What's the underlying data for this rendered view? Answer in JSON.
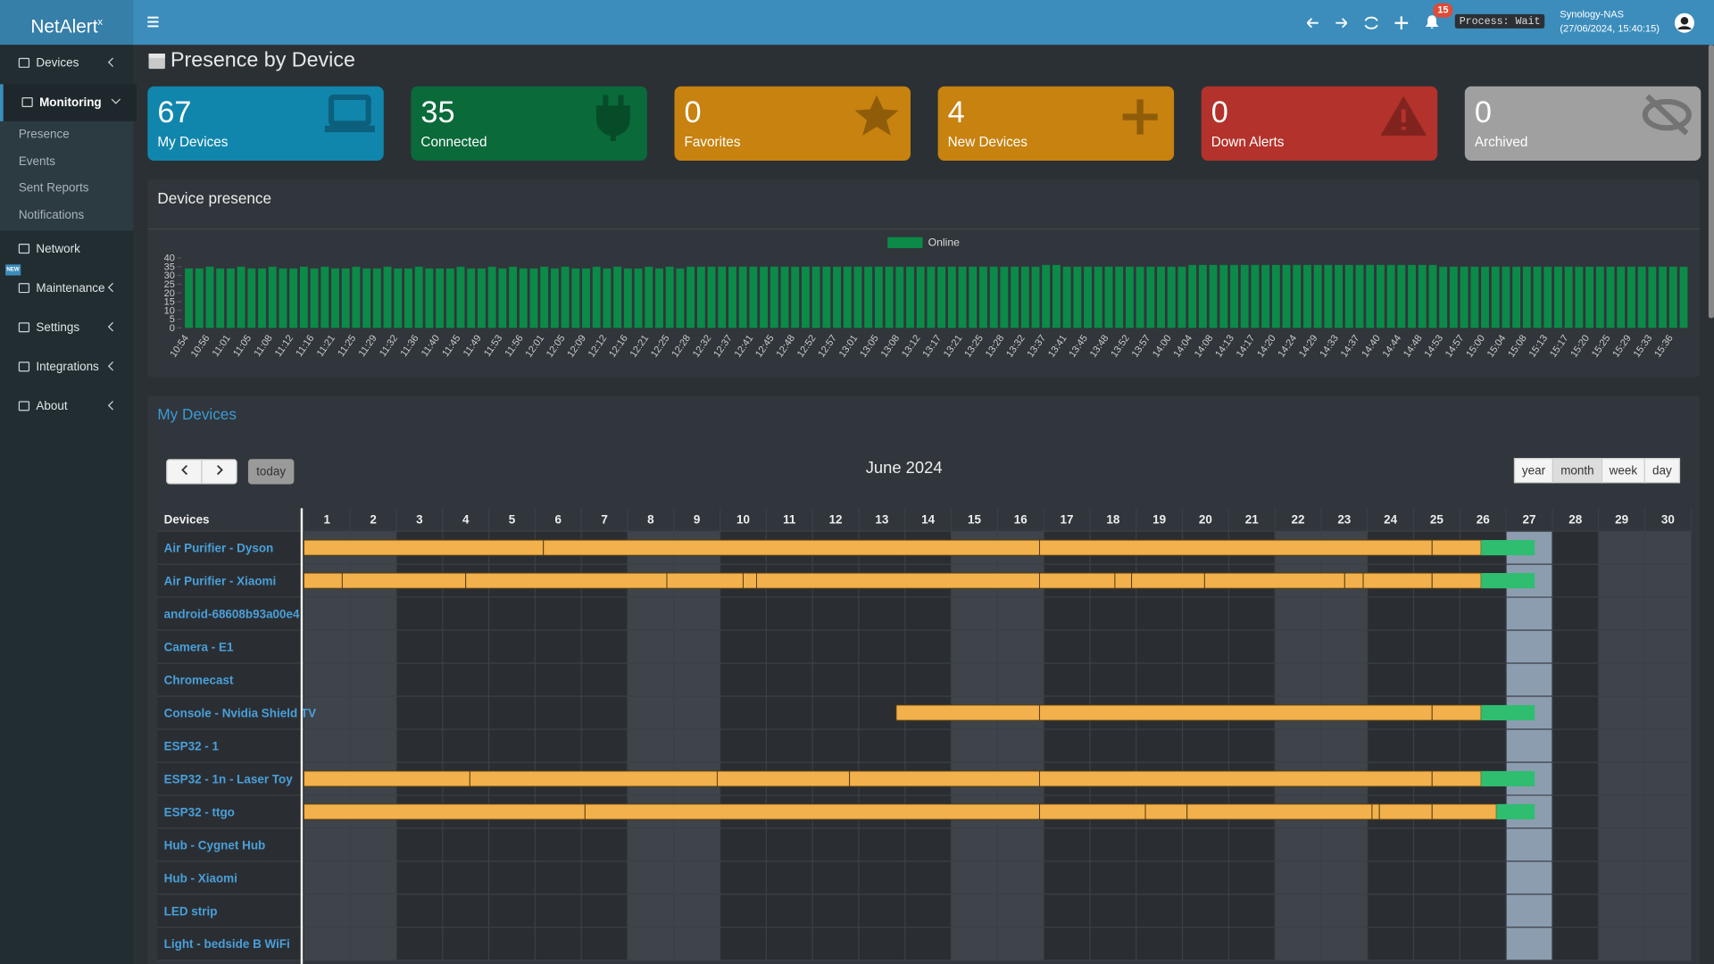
{
  "header": {
    "logo": "NetAlert",
    "logo_sup": "x",
    "notifications": "15",
    "process": "Process: Wait",
    "host": "Synology-NAS",
    "timestamp": "(27/06/2024, 15:40:15)"
  },
  "sidebar": {
    "items": [
      {
        "label": "Devices"
      },
      {
        "label": "Monitoring",
        "children": [
          "Presence",
          "Events",
          "Sent Reports",
          "Notifications"
        ]
      },
      {
        "label": "Network"
      },
      {
        "label": "Maintenance",
        "badge": "NEW"
      },
      {
        "label": "Settings"
      },
      {
        "label": "Integrations"
      },
      {
        "label": "About"
      }
    ]
  },
  "page_title": "Presence by Device",
  "tiles": [
    {
      "value": "67",
      "label": "My Devices",
      "color": "#1186ad"
    },
    {
      "value": "35",
      "label": "Connected",
      "color": "#0a6a3a"
    },
    {
      "value": "0",
      "label": "Favorites",
      "color": "#c7820f"
    },
    {
      "value": "4",
      "label": "New Devices",
      "color": "#c7820f"
    },
    {
      "value": "0",
      "label": "Down Alerts",
      "color": "#b3322b"
    },
    {
      "value": "0",
      "label": "Archived",
      "color": "#a0a0a0"
    }
  ],
  "presence_chart": {
    "type": "bar",
    "title": "Device presence",
    "categories": [
      "10:54",
      null,
      "10:56",
      null,
      "11:01",
      null,
      "11:05",
      null,
      "11:08",
      null,
      "11:12",
      null,
      "11:16",
      null,
      "11:21",
      null,
      "11:25",
      null,
      "11:29",
      null,
      "11:32",
      null,
      "11:36",
      null,
      "11:40",
      null,
      "11:45",
      null,
      "11:49",
      null,
      "11:53",
      null,
      "11:56",
      null,
      "12:01",
      null,
      "12:05",
      null,
      "12:09",
      null,
      "12:12",
      null,
      "12:16",
      null,
      "12:21",
      null,
      "12:25",
      null,
      "12:28",
      null,
      "12:32",
      null,
      "12:37",
      null,
      "12:41",
      null,
      "12:45",
      null,
      "12:48",
      null,
      "12:52",
      null,
      "12:57",
      null,
      "13:01",
      null,
      "13:05",
      null,
      "13:08",
      null,
      "13:12",
      null,
      "13:17",
      null,
      "13:21",
      null,
      "13:25",
      null,
      "13:28",
      null,
      "13:32",
      null,
      "13:37",
      null,
      "13:41",
      null,
      "13:45",
      null,
      "13:48",
      null,
      "13:52",
      null,
      "13:57",
      null,
      "14:00",
      null,
      "14:04",
      null,
      "14:08",
      null,
      "14:13",
      null,
      "14:17",
      null,
      "14:20",
      null,
      "14:24",
      null,
      "14:29",
      null,
      "14:33",
      null,
      "14:37",
      null,
      "14:40",
      null,
      "14:44",
      null,
      "14:48",
      null,
      "14:53",
      null,
      "14:57",
      null,
      "15:00",
      null,
      "15:04",
      null,
      "15:08",
      null,
      "15:13",
      null,
      "15:17",
      null,
      "15:20",
      null,
      "15:25",
      null,
      "15:29",
      null,
      "15:33",
      null,
      "15:36",
      null
    ],
    "series": [
      {
        "name": "Online",
        "color": "#0b8a48",
        "values": [
          34,
          34,
          35,
          34,
          34,
          35,
          34,
          34,
          35,
          34,
          34,
          35,
          34,
          35,
          34,
          34,
          35,
          34,
          34,
          35,
          34,
          34,
          35,
          34,
          34,
          34,
          35,
          34,
          34,
          35,
          34,
          35,
          34,
          34,
          35,
          34,
          35,
          34,
          34,
          35,
          34,
          35,
          34,
          34,
          35,
          34,
          35,
          34,
          35,
          35,
          35,
          35,
          35,
          35,
          35,
          35,
          35,
          35,
          35,
          35,
          35,
          35,
          35,
          35,
          35,
          35,
          35,
          35,
          35,
          35,
          35,
          35,
          35,
          35,
          35,
          35,
          35,
          35,
          35,
          35,
          35,
          35,
          36,
          36,
          35,
          35,
          35,
          35,
          35,
          35,
          35,
          35,
          35,
          35,
          35,
          35,
          36,
          36,
          36,
          36,
          36,
          36,
          36,
          36,
          36,
          36,
          36,
          36,
          36,
          36,
          36,
          36,
          36,
          36,
          36,
          36,
          36,
          36,
          36,
          36,
          35,
          35,
          35,
          35,
          35,
          35,
          35,
          35,
          35,
          35,
          35,
          35,
          35,
          35,
          35,
          35,
          35,
          35,
          35,
          35,
          35,
          35,
          35,
          35
        ]
      }
    ],
    "ylim": [
      0,
      40
    ],
    "yticks": [
      0,
      5,
      10,
      15,
      20,
      25,
      30,
      35,
      40
    ]
  },
  "calendar": {
    "title": "My Devices",
    "month": "June 2024",
    "today_button": "today",
    "views": [
      "year",
      "month",
      "week",
      "day"
    ],
    "column_header": "Devices",
    "days": [
      1,
      2,
      3,
      4,
      5,
      6,
      7,
      8,
      9,
      10,
      11,
      12,
      13,
      14,
      15,
      16,
      17,
      18,
      19,
      20,
      21,
      22,
      23,
      24,
      25,
      26,
      27,
      28,
      29,
      30
    ],
    "weekend_days": [
      1,
      2,
      8,
      9,
      15,
      16,
      22,
      23,
      29,
      30
    ],
    "today": 27,
    "devices": [
      {
        "name": "Air Purifier - Dyson",
        "sessions": [
          [
            1,
            6.18
          ],
          [
            6.18,
            16.91
          ],
          [
            16.91,
            25.4
          ],
          [
            25.4,
            26.46
          ]
        ],
        "online": [
          26.46,
          27.62
        ]
      },
      {
        "name": "Air Purifier - Xiaomi",
        "sessions": [
          [
            1,
            1.83
          ],
          [
            1.83,
            4.5
          ],
          [
            4.5,
            8.85
          ],
          [
            8.85,
            10.5
          ],
          [
            10.5,
            10.79
          ],
          [
            10.79,
            16.91
          ],
          [
            16.91,
            18.54
          ],
          [
            18.54,
            18.9
          ],
          [
            18.9,
            20.48
          ],
          [
            20.48,
            23.51
          ],
          [
            23.51,
            23.91
          ],
          [
            23.91,
            25.4
          ],
          [
            25.4,
            26.46
          ]
        ],
        "online": [
          26.46,
          27.62
        ]
      },
      {
        "name": "android-68608b93a00e4",
        "sessions": []
      },
      {
        "name": "Camera - E1",
        "sessions": []
      },
      {
        "name": "Chromecast",
        "sessions": []
      },
      {
        "name": "Console - Nvidia Shield TV",
        "sessions": [
          [
            13.81,
            16.91
          ],
          [
            16.91,
            25.4
          ],
          [
            25.4,
            26.46
          ]
        ],
        "online": [
          26.46,
          27.62
        ]
      },
      {
        "name": "ESP32 - 1",
        "sessions": []
      },
      {
        "name": "ESP32 - 1n - Laser Toy",
        "sessions": [
          [
            1,
            4.59
          ],
          [
            4.59,
            9.94
          ],
          [
            9.94,
            12.8
          ],
          [
            12.8,
            16.91
          ],
          [
            16.91,
            25.4
          ],
          [
            25.4,
            26.46
          ]
        ],
        "online": [
          26.46,
          27.62
        ]
      },
      {
        "name": "ESP32 - ttgo",
        "sessions": [
          [
            1,
            7.08
          ],
          [
            7.08,
            16.91
          ],
          [
            16.91,
            19.2
          ],
          [
            19.2,
            20.1
          ],
          [
            20.1,
            24.1
          ],
          [
            24.1,
            24.26
          ],
          [
            24.26,
            25.4
          ],
          [
            25.4,
            26.79
          ]
        ],
        "online": [
          26.79,
          27.62
        ]
      },
      {
        "name": "Hub - Cygnet Hub",
        "sessions": []
      },
      {
        "name": "Hub - Xiaomi",
        "sessions": []
      },
      {
        "name": "LED strip",
        "sessions": []
      },
      {
        "name": "Light - bedside B WiFi",
        "sessions": []
      }
    ]
  }
}
